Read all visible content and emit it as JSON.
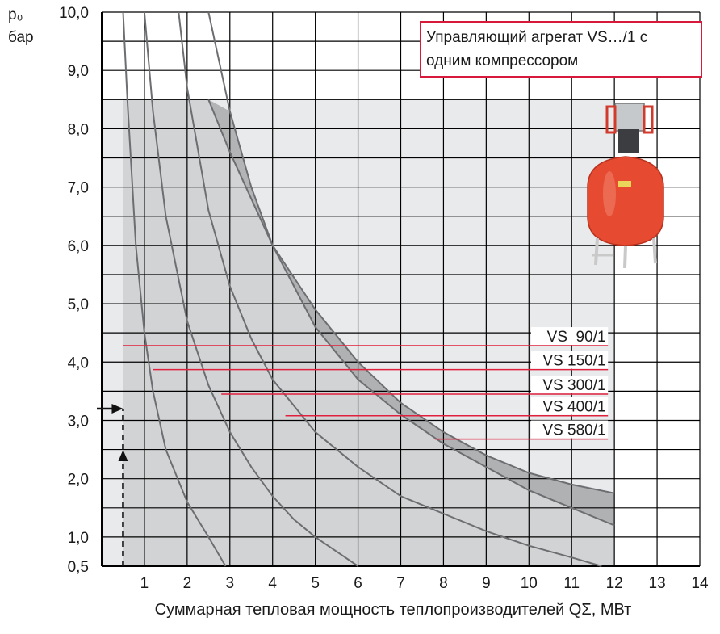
{
  "chart_data": {
    "type": "line",
    "title": "Управляющий агрегат VS…/1 с одним компрессором",
    "xlabel": "Суммарная тепловая мощность теплопроизводителей QΣ, МВт",
    "ylabel_symbol": "p₀",
    "ylabel_unit": "бар",
    "xlim": [
      0,
      14
    ],
    "ylim": [
      0.5,
      10.0
    ],
    "x_ticks": [
      "1",
      "2",
      "3",
      "4",
      "5",
      "6",
      "7",
      "8",
      "9",
      "10",
      "11",
      "12",
      "13",
      "14"
    ],
    "y_ticks": [
      "0,5",
      "1,0",
      "2,0",
      "3,0",
      "4,0",
      "5,0",
      "6,0",
      "7,0",
      "8,0",
      "9,0",
      "10,0"
    ],
    "grid": true,
    "series": [
      {
        "name": "VS  90/1",
        "label_level": 4.28,
        "label_line_from_x": 0.5,
        "points": [
          [
            0.5,
            10.0
          ],
          [
            0.6,
            8.5
          ],
          [
            0.8,
            6.0
          ],
          [
            1.0,
            4.5
          ],
          [
            1.2,
            3.5
          ],
          [
            1.5,
            2.5
          ],
          [
            2.0,
            1.6
          ],
          [
            2.5,
            1.0
          ],
          [
            2.9,
            0.5
          ]
        ]
      },
      {
        "name": "VS 150/1",
        "label_level": 3.87,
        "label_line_from_x": 1.2,
        "points": [
          [
            1.0,
            10.0
          ],
          [
            1.2,
            8.3
          ],
          [
            1.5,
            6.5
          ],
          [
            2.0,
            4.7
          ],
          [
            2.5,
            3.6
          ],
          [
            3.0,
            2.8
          ],
          [
            3.5,
            2.2
          ],
          [
            4.0,
            1.7
          ],
          [
            4.5,
            1.3
          ],
          [
            5.0,
            1.0
          ],
          [
            5.5,
            0.75
          ],
          [
            6.0,
            0.5
          ]
        ]
      },
      {
        "name": "VS 300/1",
        "label_level": 3.45,
        "label_line_from_x": 2.8,
        "points": [
          [
            1.8,
            10.0
          ],
          [
            2.0,
            8.7
          ],
          [
            2.5,
            6.6
          ],
          [
            3.0,
            5.3
          ],
          [
            3.5,
            4.4
          ],
          [
            4.0,
            3.7
          ],
          [
            5.0,
            2.8
          ],
          [
            6.0,
            2.2
          ],
          [
            7.0,
            1.7
          ],
          [
            8.0,
            1.4
          ],
          [
            9.0,
            1.1
          ],
          [
            10.0,
            0.85
          ],
          [
            11.0,
            0.65
          ],
          [
            11.7,
            0.5
          ]
        ]
      },
      {
        "name": "VS 400/1",
        "label_level": 3.08,
        "label_line_from_x": 4.3,
        "points": [
          [
            2.5,
            10.0
          ],
          [
            3.0,
            8.3
          ],
          [
            3.5,
            7.0
          ],
          [
            4.0,
            6.0
          ],
          [
            5.0,
            4.6
          ],
          [
            6.0,
            3.7
          ],
          [
            7.0,
            3.1
          ],
          [
            8.0,
            2.6
          ],
          [
            9.0,
            2.2
          ],
          [
            10.0,
            1.8
          ],
          [
            11.0,
            1.5
          ],
          [
            12.0,
            1.2
          ]
        ]
      },
      {
        "name": "VS 580/1",
        "label_level": 2.68,
        "label_line_from_x": 7.8,
        "points": [
          [
            2.5,
            8.5
          ],
          [
            3.0,
            7.6
          ],
          [
            4.0,
            6.0
          ],
          [
            5.0,
            4.9
          ],
          [
            6.0,
            4.0
          ],
          [
            7.0,
            3.3
          ],
          [
            8.0,
            2.8
          ],
          [
            9.0,
            2.4
          ],
          [
            10.0,
            2.1
          ],
          [
            11.0,
            1.9
          ],
          [
            12.0,
            1.75
          ]
        ]
      }
    ],
    "annotation_arrow_x": 0.5,
    "annotation_arrow_y": 3.2,
    "colors": {
      "grid": "#000000",
      "zone_light": "#e9eaec",
      "zone_mid": "#d2d3d5",
      "zone_dark": "#a9aaad",
      "curve": "#6d6e71",
      "label_line": "#e0203c",
      "box_border": "#d9193b"
    }
  }
}
